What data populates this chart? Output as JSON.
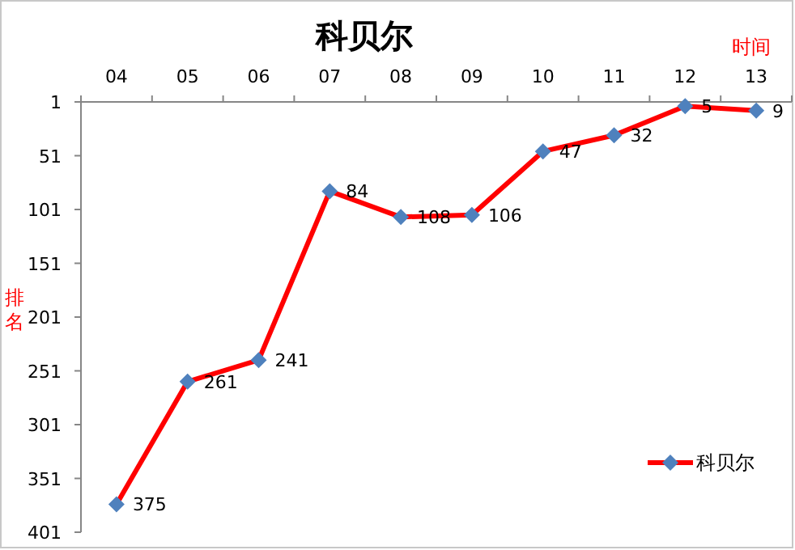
{
  "chart_data": {
    "type": "line",
    "title": "科贝尔",
    "xlabel": "时间",
    "ylabel": "排名",
    "categories": [
      "04",
      "05",
      "06",
      "07",
      "08",
      "09",
      "10",
      "11",
      "12",
      "13"
    ],
    "series": [
      {
        "name": "科贝尔",
        "color": "#ff0000",
        "values": [
          375,
          261,
          241,
          84,
          108,
          106,
          47,
          32,
          5,
          9
        ]
      }
    ],
    "ylim": [
      401,
      1
    ],
    "yticks": [
      1,
      51,
      101,
      151,
      201,
      251,
      301,
      351,
      401
    ],
    "data_labels": true,
    "legend": "bottom right",
    "marker": "diamond"
  }
}
